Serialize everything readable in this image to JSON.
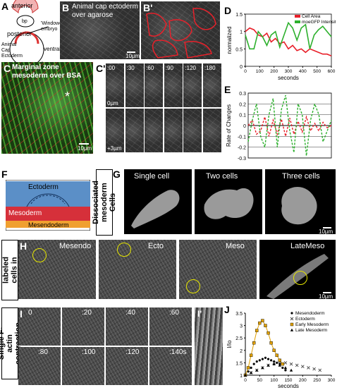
{
  "panels": {
    "A": {
      "label": "A",
      "anterior": "anterior",
      "posterior": "posterior",
      "bp": "bp",
      "windowed": "'Windowed' embryo",
      "animal_cap": "Animal Cap Ectoderm",
      "ventral": "ventral",
      "dorsal": "dorsal",
      "dl": "dl"
    },
    "B": {
      "label": "B",
      "title": "Animal cap ectoderm over agarose",
      "scale": "10µm"
    },
    "B2": {
      "label": "B'"
    },
    "C": {
      "label": "C",
      "title": "Marginal zone mesoderm over BSA",
      "scale": "10µm",
      "star": "*"
    },
    "C2": {
      "label": "C'",
      "times": [
        ":00",
        ":30",
        ":60",
        ":90",
        ":120",
        ":180"
      ],
      "row1_mark": "0µm",
      "row2_mark": "+3µm"
    },
    "F": {
      "label": "F",
      "layers": [
        "Ectoderm",
        "Mesoderm",
        "Mesendoderm"
      ]
    },
    "G": {
      "label": "G",
      "side": "Dissociated mesoderm Cells",
      "titles": [
        "Single cell",
        "Two cells",
        "Three cells"
      ],
      "scale": "10µm"
    },
    "H": {
      "label": "H",
      "side": "Scatter-labeled cells in DMZ",
      "titles": [
        "Mesendo",
        "Ecto",
        "Meso",
        "LateMeso"
      ],
      "scale": "10µm"
    },
    "I": {
      "label": "I",
      "side": "Single F-actin contraction",
      "times": [
        "0",
        ":20",
        ":40",
        ":60",
        ":80",
        ":100",
        ":120",
        ":140s"
      ]
    },
    "I2": {
      "label": "I'"
    }
  },
  "colors": {
    "cell_area": "#e8202a",
    "moegfp": "#2db02d",
    "ectoderm": "#5b8fc7",
    "mesoderm": "#d6303a",
    "mesendoderm": "#f0a030",
    "highlight_circle": "#e6e600"
  },
  "chart_data": [
    {
      "id": "D",
      "label": "D",
      "type": "line",
      "xlabel": "seconds",
      "ylabel": "normalized",
      "xlim": [
        0,
        600
      ],
      "ylim": [
        0,
        1.5
      ],
      "xticks": [
        0,
        100,
        200,
        300,
        400,
        500,
        600
      ],
      "yticks": [
        0,
        0.5,
        1,
        1.5
      ],
      "legend": "top-right",
      "series": [
        {
          "name": "Cell Area",
          "color": "#e8202a",
          "x": [
            0,
            30,
            60,
            90,
            120,
            150,
            180,
            210,
            240,
            270,
            300,
            330,
            360,
            390,
            420,
            450,
            480,
            510,
            540,
            570,
            600
          ],
          "y": [
            1.0,
            1.1,
            1.05,
            0.9,
            0.85,
            0.95,
            0.7,
            0.8,
            0.65,
            0.7,
            0.5,
            0.6,
            0.45,
            0.5,
            0.4,
            0.5,
            0.45,
            0.4,
            0.35,
            0.35,
            0.3
          ]
        },
        {
          "name": "moeGFP Intensity",
          "color": "#2db02d",
          "x": [
            0,
            30,
            60,
            90,
            120,
            150,
            180,
            210,
            240,
            270,
            300,
            330,
            360,
            390,
            420,
            450,
            480,
            510,
            540,
            570,
            600
          ],
          "y": [
            0.9,
            0.5,
            0.5,
            1.0,
            0.85,
            0.6,
            0.9,
            1.0,
            0.55,
            0.9,
            1.25,
            1.1,
            0.75,
            1.1,
            1.2,
            0.5,
            0.9,
            1.05,
            1.15,
            1.0,
            0.85
          ]
        }
      ]
    },
    {
      "id": "E",
      "label": "E",
      "type": "line",
      "xlabel": "",
      "ylabel": "Rate of Changes",
      "xlim": [
        0,
        600
      ],
      "ylim": [
        -0.3,
        0.3
      ],
      "yticks": [
        -0.3,
        -0.2,
        -0.1,
        0,
        0.1,
        0.2,
        0.3
      ],
      "series": [
        {
          "name": "Cell Area",
          "color": "#e8202a",
          "x": [
            0,
            30,
            60,
            90,
            120,
            150,
            180,
            210,
            240,
            270,
            300,
            330,
            360,
            390,
            420,
            450,
            480,
            510,
            540,
            570,
            600
          ],
          "y": [
            0.0,
            0.05,
            -0.08,
            -0.05,
            0.08,
            -0.1,
            0.05,
            -0.08,
            0.06,
            -0.1,
            0.07,
            -0.08,
            0.04,
            -0.06,
            0.08,
            -0.05,
            0.02,
            -0.05,
            0.03,
            -0.02,
            0.0
          ]
        },
        {
          "name": "moeGFP Intensity",
          "color": "#2db02d",
          "x": [
            0,
            30,
            60,
            90,
            120,
            150,
            180,
            210,
            240,
            270,
            300,
            330,
            360,
            390,
            420,
            450,
            480,
            510,
            540,
            570,
            600
          ],
          "y": [
            -0.15,
            0.05,
            0.2,
            -0.1,
            -0.2,
            0.1,
            0.25,
            -0.2,
            0.15,
            0.28,
            -0.05,
            -0.25,
            0.2,
            0.1,
            -0.28,
            0.05,
            0.2,
            0.1,
            -0.15,
            -0.05,
            0.05
          ]
        }
      ]
    },
    {
      "id": "J",
      "label": "J",
      "type": "scatter",
      "xlabel": "seconds",
      "ylabel": "I/Io",
      "xlim": [
        0,
        300
      ],
      "ylim": [
        1,
        3.5
      ],
      "xticks": [
        0,
        50,
        100,
        150,
        200,
        250,
        300
      ],
      "yticks": [
        1,
        1.5,
        2,
        2.5,
        3,
        3.5
      ],
      "legend": "top-right",
      "series": [
        {
          "name": "Mesendoderm",
          "color": "#000000",
          "marker": "dot",
          "x": [
            0,
            10,
            20,
            30,
            40,
            50,
            60,
            70,
            80,
            90,
            100,
            110,
            120,
            130,
            140
          ],
          "y": [
            1.0,
            1.15,
            1.3,
            1.45,
            1.55,
            1.6,
            1.65,
            1.7,
            1.65,
            1.6,
            1.55,
            1.5,
            1.45,
            1.3,
            1.2
          ]
        },
        {
          "name": "Ectoderm",
          "color": "#444444",
          "marker": "x",
          "x": [
            0,
            20,
            40,
            60,
            80,
            100,
            120,
            140,
            160,
            180,
            200,
            220,
            240,
            260
          ],
          "y": [
            1.0,
            1.1,
            1.2,
            1.3,
            1.4,
            1.5,
            1.55,
            1.5,
            1.45,
            1.4,
            1.35,
            1.3,
            1.25,
            1.2
          ]
        },
        {
          "name": "Early Mesoderm",
          "color": "#e0a000",
          "marker": "square",
          "x": [
            0,
            10,
            20,
            30,
            40,
            50,
            60,
            70,
            80,
            90,
            100,
            110,
            120,
            130
          ],
          "y": [
            1.0,
            1.3,
            1.8,
            2.3,
            2.8,
            3.1,
            3.2,
            3.0,
            2.7,
            2.3,
            2.0,
            1.8,
            1.6,
            1.45
          ]
        },
        {
          "name": "Late Mesoderm",
          "color": "#000000",
          "marker": "triangle",
          "x": [
            0,
            20,
            40,
            60,
            80,
            100,
            120,
            140,
            160
          ],
          "y": [
            1.0,
            1.1,
            1.2,
            1.3,
            1.4,
            1.45,
            1.4,
            1.3,
            1.2
          ]
        }
      ]
    }
  ]
}
